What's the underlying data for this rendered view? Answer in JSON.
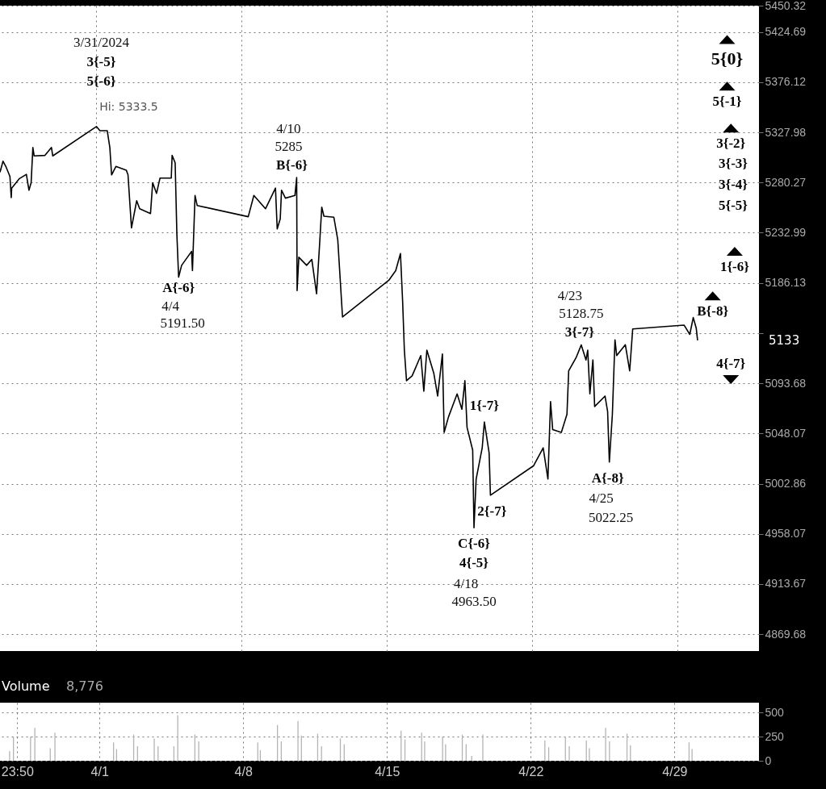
{
  "chart_data": [
    {
      "type": "line",
      "x": [
        "2024-03-27T08:30",
        "2024-03-27T12:00",
        "2024-03-27T15:30",
        "2024-03-27T20:00",
        "2024-03-27T21:30",
        "2024-03-27T22:00",
        "2024-03-28T07:00",
        "2024-03-28T15:00",
        "2024-03-28T18:00",
        "2024-03-28T20:30",
        "2024-03-28T22:30",
        "2024-03-29T00:00",
        "2024-03-29T12:30",
        "2024-03-29T20:00",
        "2024-03-29T21:30",
        "2024-04-01T00:00",
        "2024-04-01T04:00",
        "2024-04-01T12:30",
        "2024-04-01T15:30",
        "2024-04-01T17:30",
        "2024-04-01T22:30",
        "2024-04-02T10:30",
        "2024-04-02T12:30",
        "2024-04-02T16:30",
        "2024-04-02T22:30",
        "2024-04-03T02:00",
        "2024-04-03T14:30",
        "2024-04-03T17:00",
        "2024-04-03T21:30",
        "2024-04-04T01:30",
        "2024-04-04T14:30",
        "2024-04-04T15:30",
        "2024-04-04T19:00",
        "2024-04-04T21:00",
        "2024-04-04T23:00",
        "2024-04-05T02:30",
        "2024-04-05T14:00",
        "2024-04-05T15:00",
        "2024-04-05T18:00",
        "2024-04-05T20:30",
        "2024-04-08T07:30",
        "2024-04-08T14:00",
        "2024-04-09T03:30",
        "2024-04-09T15:00",
        "2024-04-09T17:00",
        "2024-04-09T20:30",
        "2024-04-09T22:00",
        "2024-04-10T02:30",
        "2024-04-10T13:30",
        "2024-04-10T15:30",
        "2024-04-10T16:00",
        "2024-04-10T18:00",
        "2024-04-11T03:00",
        "2024-04-11T09:00",
        "2024-04-11T14:30",
        "2024-04-11T18:00",
        "2024-04-11T20:30",
        "2024-04-11T23:00",
        "2024-04-12T10:30",
        "2024-04-12T15:00",
        "2024-04-12T20:30",
        "2024-04-15T02:00",
        "2024-04-15T10:00",
        "2024-04-15T15:30",
        "2024-04-15T18:00",
        "2024-04-15T20:00",
        "2024-04-15T22:30",
        "2024-04-16T05:00",
        "2024-04-16T15:00",
        "2024-04-16T18:30",
        "2024-04-16T22:00",
        "2024-04-17T06:00",
        "2024-04-17T10:30",
        "2024-04-17T16:00",
        "2024-04-17T18:00",
        "2024-04-17T23:00",
        "2024-04-18T09:00",
        "2024-04-18T14:30",
        "2024-04-18T18:00",
        "2024-04-18T20:30",
        "2024-04-19T03:00",
        "2024-04-19T04:30",
        "2024-04-19T07:00",
        "2024-04-19T14:00",
        "2024-04-19T16:30",
        "2024-04-19T22:00",
        "2024-04-19T23:30",
        "2024-04-22T01:30",
        "2024-04-22T12:30",
        "2024-04-22T18:00",
        "2024-04-22T21:00",
        "2024-04-22T23:30",
        "2024-04-23T09:30",
        "2024-04-23T16:00",
        "2024-04-23T18:00",
        "2024-04-24T02:30",
        "2024-04-24T08:30",
        "2024-04-24T14:00",
        "2024-04-24T16:00",
        "2024-04-24T18:30",
        "2024-04-24T22:00",
        "2024-04-25T00:00",
        "2024-04-25T12:00",
        "2024-04-25T15:00",
        "2024-04-25T17:00",
        "2024-04-25T20:30",
        "2024-04-25T23:30",
        "2024-04-26T01:30",
        "2024-04-26T11:30",
        "2024-04-26T16:30",
        "2024-04-26T20:00",
        "2024-04-29T07:30",
        "2024-04-29T14:00",
        "2024-04-29T18:00",
        "2024-04-29T21:30",
        "2024-04-29T23:00"
      ],
      "series": [
        {
          "color": "#000000",
          "values": [
            5290,
            5300.5,
            5295,
            5286,
            5266,
            5275,
            5284,
            5288,
            5273,
            5280,
            5313.5,
            5305.5,
            5306,
            5313.5,
            5305.5,
            5333.5,
            5329.5,
            5329.5,
            5313.5,
            5287.5,
            5295.5,
            5292,
            5287.5,
            5237.5,
            5263,
            5255.5,
            5251,
            5280,
            5270,
            5284.5,
            5284.5,
            5306,
            5299,
            5231.5,
            5191.5,
            5202.5,
            5215.5,
            5197.5,
            5268,
            5258.5,
            5248,
            5268,
            5255.5,
            5275,
            5236.5,
            5246,
            5273,
            5265.5,
            5268,
            5285,
            5179,
            5210,
            5202.5,
            5208,
            5176,
            5222,
            5257,
            5248.5,
            5247.5,
            5226.5,
            5154.5,
            5188.5,
            5197.5,
            5213.5,
            5169,
            5124,
            5096,
            5100.5,
            5119,
            5086.5,
            5124,
            5103,
            5082,
            5120.5,
            5049,
            5063,
            5084,
            5070,
            5096,
            5053.5,
            5033,
            4963.5,
            5007,
            5035,
            5058.5,
            5030.5,
            4992.5,
            5019,
            5035,
            5007,
            5077,
            5051.5,
            5049,
            5065.5,
            5105,
            5117,
            5128.75,
            5115,
            5124,
            5084,
            5115,
            5072.5,
            5082,
            5068,
            5022.25,
            5065.5,
            5133.5,
            5119,
            5129,
            5105,
            5143.5,
            5147,
            5138.5,
            5154,
            5144,
            5133
          ]
        }
      ],
      "xlim": [
        "2024-03-27T08:30",
        "2024-05-02T22:00"
      ],
      "xticks": [
        {
          "value": "2024-04-01",
          "label": null
        },
        {
          "value": "2024-04-08",
          "label": null
        },
        {
          "value": "2024-04-15",
          "label": null
        },
        {
          "value": "2024-04-22",
          "label": null
        },
        {
          "value": "2024-04-29",
          "label": null
        }
      ],
      "ylim": [
        4855,
        5450.32
      ],
      "yticks": [
        4869.68,
        4913.67,
        4958.07,
        5002.86,
        5048.07,
        5093.68,
        {
          "value": 5139.7,
          "label": null
        },
        5186.13,
        5232.99,
        5280.27,
        5327.98,
        5376.12,
        5424.69,
        5450.32
      ],
      "log": "y",
      "grid": true,
      "tick_labels": "y",
      "annotations": [
        "3/31/2024",
        "3{-5}",
        {
          "text": "5{-6}",
          "x": "2024-04-01T00:00",
          "y": 5333.5
        },
        {
          "text": "Hi: 5333.5",
          "x": "2024-04-01T00:00",
          "y": 5333.5
        },
        "4/10",
        {
          "text": "5285",
          "x": "2024-04-10T15:30",
          "y": 5285
        },
        {
          "text": "B{-6}",
          "x": "2024-04-10T15:30",
          "y": 5285
        },
        {
          "text": "A{-6}",
          "x": "2024-04-04T23:00",
          "y": 5191.5
        },
        {
          "text": "4/4",
          "x": "2024-04-04T23:00",
          "y": 5191.5
        },
        {
          "text": "5191.50",
          "x": "2024-04-04T23:00",
          "y": 5191.5
        },
        "4/23",
        {
          "text": "5128.75",
          "x": "2024-04-24T08:30",
          "y": 5128.75
        },
        {
          "text": "3{-7}",
          "x": "2024-04-24T08:30",
          "y": 5128.75
        },
        {
          "text": "1{-7}",
          "x": "2024-04-19T16:30",
          "y": 5058.5
        },
        {
          "text": "2{-7}",
          "x": "2024-04-19T23:30",
          "y": 4992.5
        },
        {
          "text": "C{-6}",
          "x": "2024-04-19T04:30",
          "y": 4963.5
        },
        {
          "text": "4{-5}",
          "x": "2024-04-19T04:30",
          "y": 4963.5
        },
        "4/18",
        "4963.50",
        {
          "text": "A{-8}",
          "x": "2024-04-25T17:00",
          "y": 5022.25
        },
        {
          "text": "4/25",
          "x": "2024-04-25T17:00",
          "y": 5022.25
        },
        "5022.25",
        "5{0}",
        "5{-1}",
        "3{-2}",
        "3{-3}",
        "3{-4}",
        "5{-5}",
        "1{-6}",
        "B{-8}",
        "4{-7}",
        "5133"
      ]
    },
    {
      "type": "bar",
      "title": "Volume",
      "color": "#b4b4b4",
      "x": [
        "2024-03-27T15:00",
        "2024-03-27T19:30",
        "2024-03-28T15:30",
        "2024-03-28T20:30",
        "2024-03-29T14:30",
        "2024-03-29T20:00",
        "2024-04-01T16:30",
        "2024-04-01T20:00",
        "2024-04-02T16:00",
        "2024-04-02T20:30",
        "2024-04-03T16:00",
        "2024-04-03T20:30",
        "2024-04-04T15:00",
        "2024-04-04T19:30",
        "2024-04-05T15:30",
        "2024-04-05T20:00",
        "2024-04-08T17:00",
        "2024-04-08T20:00",
        "2024-04-09T16:00",
        "2024-04-09T20:30",
        "2024-04-10T16:00",
        "2024-04-10T20:00",
        "2024-04-11T15:00",
        "2024-04-11T19:30",
        "2024-04-12T17:30",
        "2024-04-12T22:00",
        "2024-04-15T16:30",
        "2024-04-15T21:00",
        "2024-04-16T16:30",
        "2024-04-16T20:00",
        "2024-04-17T17:00",
        "2024-04-17T20:30",
        "2024-04-18T16:00",
        "2024-04-18T20:30",
        "2024-04-19T03:00",
        "2024-04-19T16:00",
        "2024-04-22T16:30",
        "2024-04-22T21:00",
        "2024-04-23T16:30",
        "2024-04-23T21:00",
        "2024-04-24T17:00",
        "2024-04-24T20:30",
        "2024-04-25T15:30",
        "2024-04-25T20:00",
        "2024-04-26T16:30",
        "2024-04-26T20:30",
        "2024-04-29T17:00",
        "2024-04-29T20:30"
      ],
      "values": [
        100,
        250,
        250,
        340,
        130,
        290,
        190,
        120,
        270,
        150,
        230,
        150,
        150,
        470,
        270,
        200,
        190,
        110,
        370,
        200,
        410,
        260,
        280,
        150,
        230,
        170,
        310,
        220,
        290,
        200,
        250,
        170,
        270,
        170,
        50,
        270,
        210,
        140,
        250,
        150,
        210,
        130,
        340,
        200,
        280,
        160,
        190,
        120
      ],
      "xlim": [
        "2024-03-27T08:30",
        "2024-05-02T22:00"
      ],
      "xticks": [
        {
          "value": "2024-03-27T23:50",
          "label": "23:50"
        },
        {
          "value": "2024-04-01",
          "label": "4/1"
        },
        {
          "value": "2024-04-08",
          "label": "4/8"
        },
        {
          "value": "2024-04-15",
          "label": "4/15"
        },
        {
          "value": "2024-04-22",
          "label": "4/22"
        },
        {
          "value": "2024-04-29",
          "label": "4/29"
        }
      ],
      "ylim": [
        0,
        600
      ],
      "yticks": [
        0,
        250,
        500
      ],
      "grid": true,
      "annotations": [
        "8,776"
      ]
    }
  ]
}
